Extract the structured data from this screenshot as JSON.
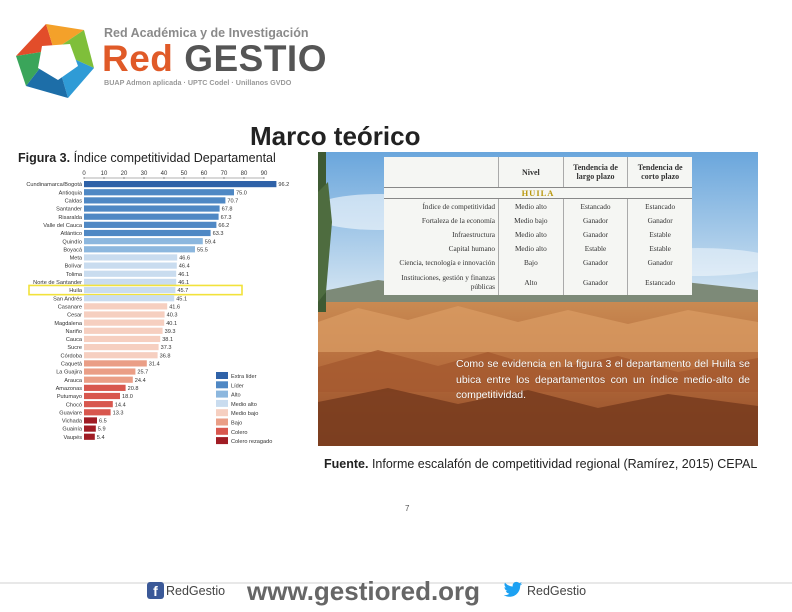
{
  "header": {
    "tagline": "Red Académica y de Investigación",
    "brand_prefix": "Red",
    "brand_name": "GESTIO",
    "partners": "BUAP Admon aplicada · UPTC Codel · Unillanos GVDO"
  },
  "slide": {
    "title": "Marco teórico",
    "figure_label": "Figura 3.",
    "figure_caption": "Índice competitividad Departamental",
    "description": "Como se evidencia en la figura 3 el departamento del Huila se ubica entre los departamentos con un índice medio-alto de competitividad.",
    "source_label": "Fuente.",
    "source_text": "Informe escalafón de competitividad regional (Ramírez, 2015) CEPAL",
    "page_number": "7"
  },
  "table": {
    "headers": [
      "",
      "Nivel",
      "Tendencia de largo plazo",
      "Tendencia de corto plazo"
    ],
    "region": "HUILA",
    "rows": [
      [
        "Índice de competitividad",
        "Medio alto",
        "Estancado",
        "Estancado"
      ],
      [
        "Fortaleza de la economía",
        "Medio bajo",
        "Ganador",
        "Ganador"
      ],
      [
        "Infraestructura",
        "Medio alto",
        "Ganador",
        "Estable"
      ],
      [
        "Capital humano",
        "Medio alto",
        "Estable",
        "Estable"
      ],
      [
        "Ciencia, tecnología e innovación",
        "Bajo",
        "Ganador",
        "Ganador"
      ],
      [
        "Instituciones, gestión y finanzas públicas",
        "Alto",
        "Ganador",
        "Estancado"
      ]
    ]
  },
  "footer": {
    "facebook": "RedGestio",
    "website": "www.gestiored.org",
    "twitter": "RedGestio"
  },
  "colors": {
    "brand_orange": "#e05a28",
    "highlight": "#f2e23a",
    "facebook": "#3b5998",
    "twitter": "#1da1f2"
  },
  "chart_data": {
    "type": "bar",
    "orientation": "horizontal",
    "xlim": [
      0,
      100
    ],
    "xticks": [
      0,
      10,
      20,
      30,
      40,
      50,
      60,
      70,
      80,
      90
    ],
    "categories": [
      "Cundinamarca/Bogotá",
      "Antioquia",
      "Caldas",
      "Santander",
      "Risaralda",
      "Valle del Cauca",
      "Atlántico",
      "Quindío",
      "Boyacá",
      "Meta",
      "Bolívar",
      "Tolima",
      "Norte de Santander",
      "Huila",
      "San Andrés",
      "Casanare",
      "Cesar",
      "Magdalena",
      "Nariño",
      "Cauca",
      "Sucre",
      "Córdoba",
      "Caquetá",
      "La Guajira",
      "Arauca",
      "Amazonas",
      "Putumayo",
      "Chocó",
      "Guaviare",
      "Vichada",
      "Guainía",
      "Vaupés"
    ],
    "values": [
      96.2,
      75.0,
      70.7,
      67.8,
      67.3,
      66.2,
      63.3,
      59.4,
      55.5,
      46.6,
      46.4,
      46.1,
      46.1,
      45.7,
      45.1,
      41.6,
      40.3,
      40.1,
      39.3,
      38.1,
      37.3,
      36.8,
      31.4,
      25.7,
      24.4,
      20.8,
      18.0,
      14.4,
      13.3,
      6.5,
      5.9,
      5.4
    ],
    "value_labels": [
      "96.2",
      "75.0",
      "70.7",
      "67.8",
      "67.3",
      "66.2",
      "63.3",
      "59.4",
      "55.5",
      "46.6",
      "46.4",
      "46.1",
      "46.1",
      "45.7",
      "45.1",
      "41.6",
      "40.3",
      "40.1",
      "39.3",
      "38.1",
      "37.3",
      "36.8",
      "31.4",
      "25.7",
      "24.4",
      "20.8",
      "18.0",
      "14.4",
      "13.3",
      "6.5",
      "5.9",
      "5.4"
    ],
    "levels": [
      "Extra líder",
      "Líder",
      "Líder",
      "Líder",
      "Líder",
      "Líder",
      "Líder",
      "Alto",
      "Alto",
      "Medio alto",
      "Medio alto",
      "Medio alto",
      "Medio alto",
      "Medio alto",
      "Medio alto",
      "Medio bajo",
      "Medio bajo",
      "Medio bajo",
      "Medio bajo",
      "Medio bajo",
      "Medio bajo",
      "Medio bajo",
      "Bajo",
      "Bajo",
      "Bajo",
      "Colero",
      "Colero",
      "Colero",
      "Colero",
      "Colero rezagado",
      "Colero rezagado",
      "Colero rezagado"
    ],
    "highlighted_category": "Huila",
    "legend": [
      {
        "name": "Extra líder",
        "color": "#2f62a8"
      },
      {
        "name": "Líder",
        "color": "#4f88c4"
      },
      {
        "name": "Alto",
        "color": "#8cb7de"
      },
      {
        "name": "Medio alto",
        "color": "#c9dcef"
      },
      {
        "name": "Medio bajo",
        "color": "#f6cfc0"
      },
      {
        "name": "Bajo",
        "color": "#ea9e86"
      },
      {
        "name": "Colero",
        "color": "#d8574e"
      },
      {
        "name": "Colero rezagado",
        "color": "#a01c24"
      }
    ],
    "legend_position": "bottom-right",
    "title": "",
    "xlabel": "",
    "ylabel": ""
  }
}
